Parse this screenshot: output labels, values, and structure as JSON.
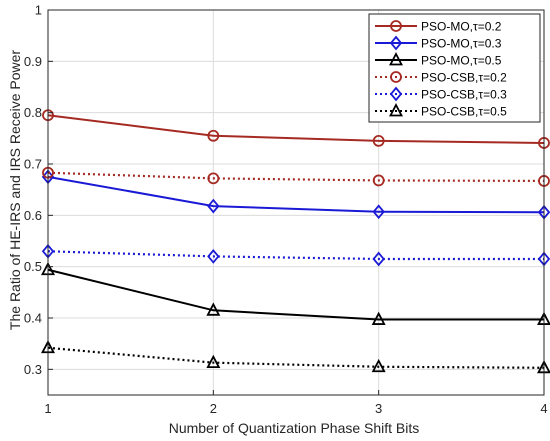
{
  "chart_data": {
    "type": "line",
    "title": "",
    "xlabel": "Number of Quantization Phase Shift Bits",
    "ylabel": "The Ratio of HE-IRS and IRS Receive Power",
    "x": [
      1,
      2,
      3,
      4
    ],
    "xlim": [
      1,
      4
    ],
    "ylim": [
      0.25,
      1
    ],
    "xticks": [
      "1",
      "2",
      "3",
      "4"
    ],
    "yticks": [
      "0.3",
      "0.4",
      "0.5",
      "0.6",
      "0.7",
      "0.8",
      "0.9",
      "1"
    ],
    "grid": true,
    "legend_position": "top-right",
    "series": [
      {
        "name": "PSO-MO,τ=0.2",
        "values": [
          0.795,
          0.755,
          0.745,
          0.741
        ],
        "color": "#a52a22",
        "dash": "solid",
        "marker": "circle"
      },
      {
        "name": "PSO-MO,τ=0.3",
        "values": [
          0.675,
          0.618,
          0.607,
          0.606
        ],
        "color": "#1a1ad6",
        "dash": "solid",
        "marker": "diamond"
      },
      {
        "name": "PSO-MO,τ=0.5",
        "values": [
          0.494,
          0.415,
          0.397,
          0.397
        ],
        "color": "#000000",
        "dash": "solid",
        "marker": "triangle"
      },
      {
        "name": "PSO-CSB,τ=0.2",
        "values": [
          0.683,
          0.672,
          0.668,
          0.667
        ],
        "color": "#a52a22",
        "dash": "dotted",
        "marker": "circle"
      },
      {
        "name": "PSO-CSB,τ=0.3",
        "values": [
          0.53,
          0.52,
          0.515,
          0.515
        ],
        "color": "#1a1ad6",
        "dash": "dotted",
        "marker": "diamond"
      },
      {
        "name": "PSO-CSB,τ=0.5",
        "values": [
          0.342,
          0.313,
          0.305,
          0.303
        ],
        "color": "#000000",
        "dash": "dotted",
        "marker": "triangle"
      }
    ]
  }
}
